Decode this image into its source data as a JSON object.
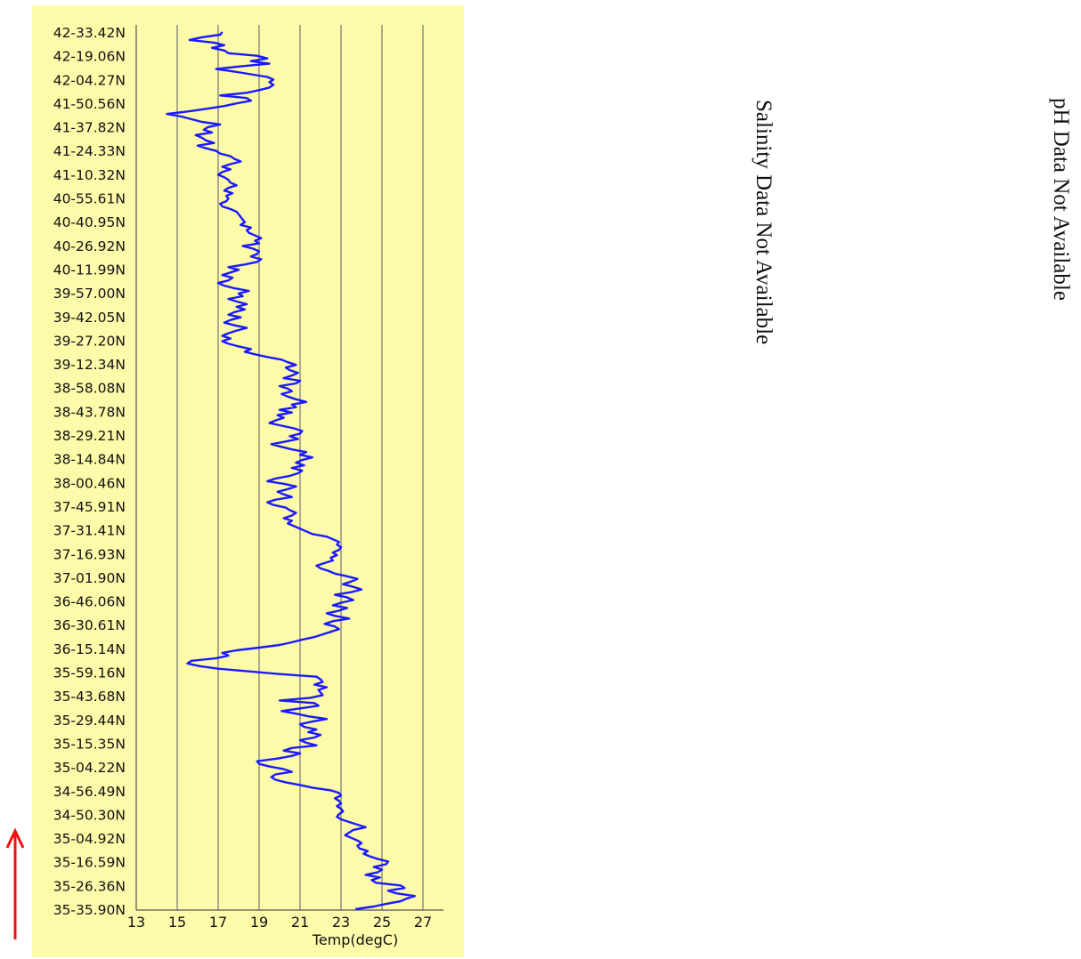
{
  "chart_data": {
    "type": "line",
    "orientation": "vertical-profile",
    "xlabel": "Temp(degC)",
    "ylabel": "",
    "xlim": [
      13,
      28
    ],
    "x_ticks": [
      13,
      15,
      17,
      19,
      21,
      23,
      25,
      27
    ],
    "grid": "vertical",
    "y_tick_labels": [
      "35-35.90N",
      "35-26.36N",
      "35-16.59N",
      "35-04.92N",
      "34-50.30N",
      "34-56.49N",
      "35-04.22N",
      "35-15.35N",
      "35-29.44N",
      "35-43.68N",
      "35-59.16N",
      "36-15.14N",
      "36-30.61N",
      "36-46.06N",
      "37-01.90N",
      "37-16.93N",
      "37-31.41N",
      "37-45.91N",
      "38-00.46N",
      "38-14.84N",
      "38-29.21N",
      "38-43.78N",
      "38-58.08N",
      "39-12.34N",
      "39-27.20N",
      "39-42.05N",
      "39-57.00N",
      "40-11.99N",
      "40-26.92N",
      "40-40.95N",
      "40-55.61N",
      "41-10.32N",
      "41-24.33N",
      "41-37.82N",
      "41-50.56N",
      "42-04.27N",
      "42-19.06N",
      "42-33.42N"
    ],
    "series": [
      {
        "name": "",
        "color": "#1a1aff",
        "temps": [
          23.7,
          24.6,
          25.2,
          25.9,
          26.2,
          26.6,
          25.7,
          25.3,
          26.1,
          25.9,
          24.7,
          24.5,
          24.9,
          24.2,
          24.8,
          25.0,
          24.6,
          25.2,
          25.3,
          24.8,
          24.4,
          24.1,
          24.3,
          23.9,
          23.8,
          24.0,
          23.8,
          23.5,
          23.2,
          23.4,
          23.6,
          24.2,
          23.8,
          23.4,
          23.0,
          22.8,
          22.9,
          23.1,
          23.0,
          22.8,
          23.0,
          22.9,
          22.7,
          23.0,
          22.9,
          22.5,
          21.6,
          21.0,
          20.3,
          19.8,
          19.6,
          19.8,
          20.6,
          20.2,
          19.5,
          19.0,
          18.9,
          19.9,
          20.6,
          21.0,
          20.2,
          20.6,
          21.8,
          21.3,
          21.0,
          21.7,
          22.0,
          21.4,
          21.8,
          21.2,
          21.0,
          21.6,
          22.3,
          21.4,
          20.8,
          20.1,
          21.0,
          21.9,
          21.7,
          20.0,
          21.5,
          22.1,
          22.0,
          21.9,
          22.3,
          21.7,
          22.1,
          22.0,
          21.8,
          20.0,
          18.5,
          17.0,
          16.1,
          15.5,
          15.7,
          16.9,
          17.5,
          17.2,
          17.9,
          19.0,
          20.0,
          20.6,
          21.1,
          21.7,
          22.1,
          22.5,
          22.9,
          22.7,
          22.2,
          22.6,
          23.4,
          22.7,
          22.3,
          22.9,
          23.3,
          22.6,
          23.0,
          23.6,
          23.3,
          22.7,
          23.5,
          24.0,
          23.6,
          23.1,
          23.5,
          23.8,
          23.3,
          22.7,
          22.4,
          22.0,
          21.8,
          22.2,
          22.6,
          22.5,
          22.8,
          22.6,
          22.9,
          23.0,
          22.8,
          22.9,
          22.6,
          22.3,
          21.6,
          21.3,
          21.0,
          20.7,
          20.4,
          20.6,
          20.2,
          20.6,
          20.8,
          20.5,
          20.3,
          19.7,
          19.4,
          19.8,
          20.6,
          20.2,
          19.9,
          20.4,
          20.8,
          20.2,
          19.4,
          19.8,
          20.5,
          20.9,
          21.1,
          20.6,
          21.2,
          20.8,
          21.1,
          21.6,
          21.0,
          21.3,
          20.6,
          20.1,
          19.6,
          20.3,
          20.9,
          20.5,
          21.0,
          21.1,
          20.7,
          20.1,
          19.5,
          19.8,
          20.2,
          19.9,
          20.6,
          20.0,
          20.8,
          20.6,
          21.3,
          20.8,
          20.4,
          20.1,
          20.6,
          20.4,
          20.0,
          20.8,
          21.0,
          20.2,
          20.6,
          20.9,
          20.5,
          20.3,
          20.8,
          20.4,
          20.1,
          19.4,
          18.8,
          18.3,
          18.6,
          18.0,
          17.5,
          17.2,
          17.6,
          17.2,
          17.5,
          17.9,
          18.4,
          17.8,
          17.3,
          17.6,
          18.1,
          17.5,
          17.8,
          18.3,
          17.9,
          18.4,
          17.9,
          17.5,
          18.2,
          18.0,
          18.5,
          17.8,
          17.3,
          17.0,
          17.5,
          17.7,
          17.2,
          17.6,
          18.0,
          17.5,
          18.3,
          18.9,
          19.1,
          18.6,
          18.9,
          19.0,
          18.7,
          18.2,
          19.0,
          18.8,
          19.1,
          18.8,
          18.5,
          18.4,
          18.6,
          18.1,
          18.3,
          18.2,
          18.1,
          18.0,
          17.9,
          17.6,
          17.2,
          17.1,
          17.4,
          17.5,
          17.4,
          17.7,
          17.3,
          17.5,
          17.9,
          17.6,
          17.5,
          17.3,
          17.0,
          17.2,
          17.6,
          17.2,
          17.6,
          18.1,
          17.8,
          17.6,
          17.1,
          16.9,
          16.4,
          16.0,
          16.8,
          16.4,
          16.2,
          15.9,
          16.7,
          16.3,
          16.5,
          17.1,
          16.2,
          15.7,
          15.2,
          14.5,
          15.6,
          16.5,
          17.3,
          17.9,
          18.6,
          18.4,
          17.1,
          18.4,
          19.0,
          19.5,
          19.7,
          19.5,
          19.7,
          19.4,
          18.6,
          17.8,
          16.9,
          18.1,
          19.5,
          18.6,
          19.4,
          18.9,
          17.5,
          17.3,
          16.7,
          17.3,
          16.8,
          15.6,
          16.2,
          17.1,
          17.2
        ]
      }
    ]
  },
  "notes": {
    "salinity": "Salinity Data Not Available",
    "ph": "pH Data Not Available"
  },
  "colors": {
    "plot_background": "#fdfaaa",
    "line": "#1a1aff",
    "gridline": "#7f7f7f",
    "arrow": "#ee1111"
  }
}
